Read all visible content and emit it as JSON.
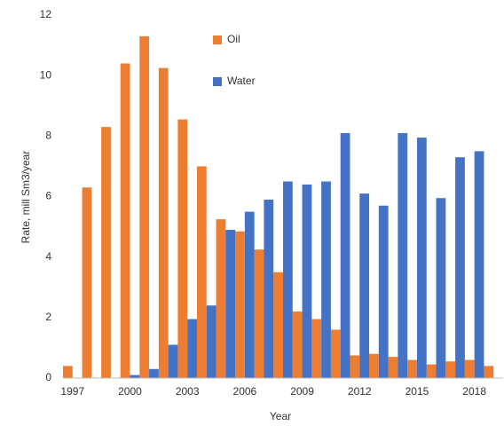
{
  "chart_data": {
    "type": "bar",
    "xlabel": "Year",
    "ylabel": "Rate, mill Sm3/year",
    "categories": [
      "1997",
      null,
      null,
      "2000",
      null,
      null,
      "2003",
      null,
      null,
      "2006",
      null,
      null,
      "2009",
      null,
      null,
      "2012",
      null,
      null,
      "2015",
      null,
      null,
      "2018",
      null
    ],
    "series": [
      {
        "name": "Oil",
        "color": "#ed7d31",
        "values": [
          0.4,
          6.3,
          8.3,
          10.4,
          11.3,
          10.25,
          8.55,
          7.0,
          5.25,
          4.85,
          4.25,
          3.5,
          2.2,
          1.95,
          1.6,
          0.75,
          0.8,
          0.7,
          0.6,
          0.45,
          0.55,
          0.6,
          0.4
        ]
      },
      {
        "name": "Water",
        "color": "#4472c4",
        "values": [
          0,
          0,
          0,
          0.1,
          0.3,
          1.1,
          1.95,
          2.4,
          4.9,
          5.5,
          5.9,
          6.5,
          6.4,
          6.5,
          8.1,
          6.1,
          5.7,
          8.1,
          7.95,
          5.95,
          7.3,
          7.5,
          null
        ]
      }
    ],
    "ylim": [
      0,
      12
    ],
    "yticks": [
      0,
      2,
      4,
      6,
      8,
      10,
      12
    ],
    "grid": false,
    "legend": "top"
  }
}
